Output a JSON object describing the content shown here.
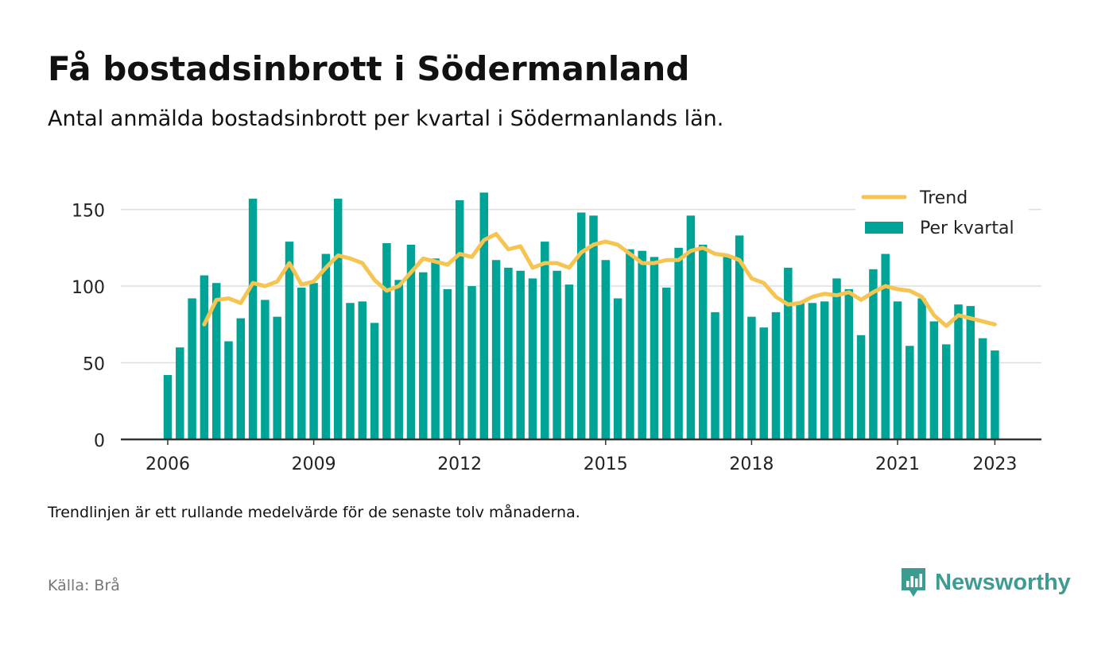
{
  "title": "Få bostadsinbrott i Södermanland",
  "subtitle": "Antal anmälda bostadsinbrott per kvartal i Södermanlands län.",
  "footnote": "Trendlinjen är ett rullande medelvärde för de senaste tolv månaderna.",
  "source": "Källa: Brå",
  "brand": {
    "name": "Newsworthy",
    "color": "#3c9c91",
    "icon": "newsworthy-logo-icon"
  },
  "colors": {
    "bar": "#00a497",
    "trend": "#f5c451",
    "grid": "#dddddd",
    "axis": "#333333",
    "text": "#222222"
  },
  "chart_data": {
    "type": "bar",
    "title": "Få bostadsinbrott i Södermanland",
    "xlabel": "",
    "ylabel": "",
    "ylim": [
      0,
      170
    ],
    "yticks": [
      0,
      50,
      100,
      150
    ],
    "xticks": [
      "2006",
      "2009",
      "2012",
      "2015",
      "2018",
      "2021",
      "2023"
    ],
    "grid": true,
    "legend_position": "top-right",
    "categories": [
      "2006 Q1",
      "2006 Q2",
      "2006 Q3",
      "2006 Q4",
      "2007 Q1",
      "2007 Q2",
      "2007 Q3",
      "2007 Q4",
      "2008 Q1",
      "2008 Q2",
      "2008 Q3",
      "2008 Q4",
      "2009 Q1",
      "2009 Q2",
      "2009 Q3",
      "2009 Q4",
      "2010 Q1",
      "2010 Q2",
      "2010 Q3",
      "2010 Q4",
      "2011 Q1",
      "2011 Q2",
      "2011 Q3",
      "2011 Q4",
      "2012 Q1",
      "2012 Q2",
      "2012 Q3",
      "2012 Q4",
      "2013 Q1",
      "2013 Q2",
      "2013 Q3",
      "2013 Q4",
      "2014 Q1",
      "2014 Q2",
      "2014 Q3",
      "2014 Q4",
      "2015 Q1",
      "2015 Q2",
      "2015 Q3",
      "2015 Q4",
      "2016 Q1",
      "2016 Q2",
      "2016 Q3",
      "2016 Q4",
      "2017 Q1",
      "2017 Q2",
      "2017 Q3",
      "2017 Q4",
      "2018 Q1",
      "2018 Q2",
      "2018 Q3",
      "2018 Q4",
      "2019 Q1",
      "2019 Q2",
      "2019 Q3",
      "2019 Q4",
      "2020 Q1",
      "2020 Q2",
      "2020 Q3",
      "2020 Q4",
      "2021 Q1",
      "2021 Q2",
      "2021 Q3",
      "2021 Q4",
      "2022 Q1",
      "2022 Q2",
      "2022 Q3",
      "2022 Q4",
      "2023 Q1"
    ],
    "series": [
      {
        "name": "Per kvartal",
        "kind": "bar",
        "values": [
          42,
          60,
          92,
          107,
          102,
          64,
          79,
          157,
          91,
          80,
          129,
          99,
          102,
          121,
          157,
          89,
          90,
          76,
          128,
          104,
          127,
          109,
          118,
          98,
          156,
          100,
          161,
          117,
          112,
          110,
          105,
          129,
          110,
          101,
          148,
          146,
          117,
          92,
          124,
          123,
          119,
          99,
          125,
          146,
          127,
          83,
          120,
          133,
          80,
          73,
          83,
          112,
          89,
          89,
          90,
          105,
          98,
          68,
          111,
          121,
          90,
          61,
          92,
          77,
          62,
          88,
          87,
          66,
          58
        ]
      },
      {
        "name": "Trend",
        "kind": "line",
        "values": [
          null,
          null,
          null,
          75,
          91,
          92,
          89,
          102,
          100,
          103,
          115,
          101,
          103,
          112,
          120,
          118,
          115,
          104,
          97,
          100,
          109,
          118,
          116,
          114,
          121,
          119,
          130,
          134,
          124,
          126,
          112,
          115,
          115,
          112,
          122,
          127,
          129,
          127,
          121,
          115,
          115,
          117,
          117,
          123,
          125,
          121,
          120,
          117,
          105,
          102,
          93,
          88,
          89,
          93,
          95,
          94,
          96,
          91,
          96,
          100,
          98,
          97,
          93,
          81,
          74,
          81,
          79,
          77,
          75
        ]
      }
    ]
  }
}
